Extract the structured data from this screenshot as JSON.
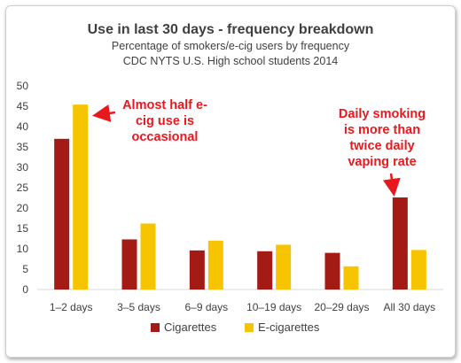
{
  "chart_data": {
    "type": "bar",
    "title": "Use in last 30 days - frequency breakdown",
    "subtitle_lines": [
      "Percentage of smokers/e-cig users by frequency",
      "CDC NYTS   U.S. High school students 2014"
    ],
    "categories": [
      "1–2 days",
      "3–5 days",
      "6–9 days",
      "10–19 days",
      "20–29 days",
      "All 30 days"
    ],
    "series": [
      {
        "name": "Cigarettes",
        "color": "#a31b14",
        "values": [
          37,
          12.3,
          9.6,
          9.4,
          9.0,
          22.6
        ]
      },
      {
        "name": "E-cigarettes",
        "color": "#f7c400",
        "values": [
          45.4,
          16.2,
          12.0,
          11.0,
          5.7,
          9.7
        ]
      }
    ],
    "ylim": [
      0,
      50
    ],
    "yticks": [
      0,
      5,
      10,
      15,
      20,
      25,
      30,
      35,
      40,
      45,
      50
    ],
    "grid": false,
    "legend_position": "bottom",
    "annotations": [
      {
        "lines": [
          "Almost half e-",
          "cig use is",
          "occasional"
        ],
        "points_to": "E-cigarettes 1–2 days"
      },
      {
        "lines": [
          "Daily smoking",
          "is more than",
          "twice daily",
          "vaping rate"
        ],
        "points_to": "Cigarettes All 30 days"
      }
    ],
    "annotation_color": "#e8191c"
  }
}
